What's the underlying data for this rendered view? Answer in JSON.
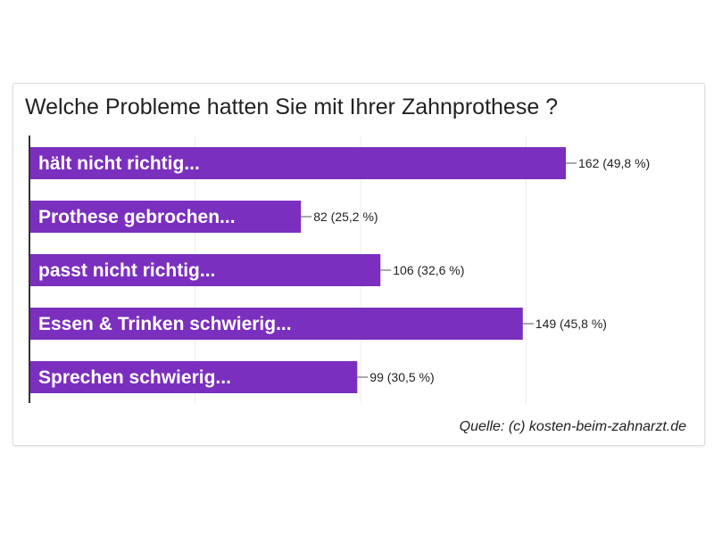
{
  "chart_data": {
    "type": "bar",
    "orientation": "horizontal",
    "title": "Welche Probleme hatten Sie mit Ihrer Zahnprothese ?",
    "categories": [
      "hält nicht richtig...",
      "Prothese gebrochen...",
      "passt nicht richtig...",
      "Essen & Trinken schwierig...",
      "Sprechen schwierig..."
    ],
    "values": [
      162,
      82,
      106,
      149,
      99
    ],
    "value_labels": [
      "162 (49,8 %)",
      "82 (25,2 %)",
      "106 (32,6 %)",
      "149 (45,8 %)",
      "99 (30,5 %)"
    ],
    "xlim": [
      0,
      200
    ],
    "grid": true,
    "bar_color": "#7b2fbe",
    "source": "Quelle: (c) kosten-beim-zahnarzt.de"
  }
}
